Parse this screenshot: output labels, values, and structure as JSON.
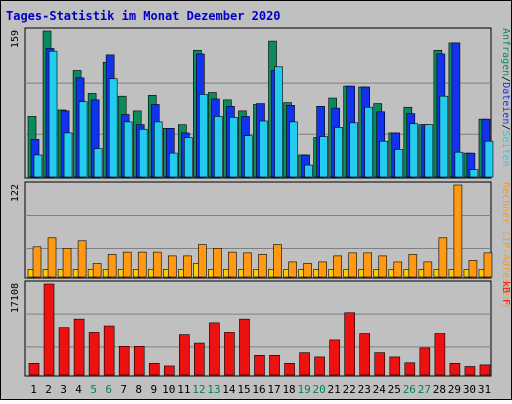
{
  "title": "Tages-Statistik im Monat Dezember 2020",
  "colors": {
    "background": "#ffffff",
    "panel": "#c0c0c0",
    "border": "#000000",
    "title": "#0000cc",
    "anfragen": "#0b8a5a",
    "dateien": "#1133ee",
    "seiten": "#22ccee",
    "besuche": "#ffcc00",
    "rechner": "#ff9911",
    "kbf": "#ee1111",
    "weekend_label": "#008060",
    "weekday_label": "#000000"
  },
  "chart_data": [
    {
      "type": "bar",
      "name_key": "requests",
      "ymax_label": "159",
      "ylim": [
        0,
        159
      ],
      "legend": [
        {
          "text": "Anfragen",
          "color": "#0b8a5a"
        },
        {
          "text": "Dateien",
          "color": "#1133ee"
        },
        {
          "text": "Seiten",
          "color": "#22ccee"
        }
      ],
      "legend_separator": "/",
      "categories": [
        "1",
        "2",
        "3",
        "4",
        "5",
        "6",
        "7",
        "8",
        "9",
        "10",
        "11",
        "12",
        "13",
        "14",
        "15",
        "16",
        "17",
        "18",
        "19",
        "20",
        "21",
        "22",
        "23",
        "24",
        "25",
        "26",
        "27",
        "28",
        "29",
        "30",
        "31"
      ],
      "series": [
        {
          "name": "Anfragen",
          "color": "#0b8a5a",
          "values": [
            66,
            159,
            73,
            116,
            91,
            125,
            88,
            72,
            89,
            53,
            57,
            138,
            92,
            84,
            72,
            79,
            148,
            81,
            24,
            43,
            86,
            99,
            98,
            80,
            48,
            76,
            57,
            138,
            146,
            26,
            63
          ]
        },
        {
          "name": "Dateien",
          "color": "#1133ee",
          "values": [
            41,
            140,
            72,
            108,
            84,
            133,
            68,
            57,
            79,
            53,
            48,
            134,
            85,
            77,
            66,
            80,
            116,
            78,
            24,
            77,
            75,
            99,
            98,
            71,
            48,
            69,
            57,
            134,
            146,
            26,
            63
          ]
        },
        {
          "name": "Seiten",
          "color": "#22ccee",
          "values": [
            24,
            137,
            48,
            82,
            31,
            107,
            60,
            52,
            60,
            26,
            43,
            90,
            66,
            65,
            45,
            61,
            120,
            60,
            13,
            44,
            54,
            59,
            76,
            39,
            30,
            58,
            57,
            88,
            27,
            8,
            39
          ]
        }
      ]
    },
    {
      "type": "bar",
      "name_key": "visits",
      "ymax_label": "122",
      "ylim": [
        0,
        122
      ],
      "legend": [
        {
          "text": "Rechner",
          "color": "#ff9911"
        },
        {
          "text": "(IP-Adressen)",
          "color": "#ff9911"
        }
      ],
      "categories": [
        "1",
        "2",
        "3",
        "4",
        "5",
        "6",
        "7",
        "8",
        "9",
        "10",
        "11",
        "12",
        "13",
        "14",
        "15",
        "16",
        "17",
        "18",
        "19",
        "20",
        "21",
        "22",
        "23",
        "24",
        "25",
        "26",
        "27",
        "28",
        "29",
        "30",
        "31"
      ],
      "series": [
        {
          "name": "Besuche",
          "color": "#ffcc00",
          "values": [
            10,
            10,
            10,
            10,
            10,
            10,
            10,
            10,
            10,
            10,
            10,
            18,
            10,
            10,
            10,
            10,
            10,
            10,
            10,
            10,
            10,
            10,
            10,
            10,
            10,
            10,
            10,
            10,
            10,
            10,
            10
          ]
        },
        {
          "name": "Rechner",
          "color": "#ff9911",
          "values": [
            40,
            52,
            38,
            48,
            18,
            30,
            33,
            33,
            33,
            28,
            28,
            43,
            38,
            33,
            32,
            30,
            43,
            20,
            18,
            20,
            28,
            32,
            32,
            28,
            20,
            30,
            20,
            52,
            122,
            22,
            32
          ]
        }
      ]
    },
    {
      "type": "bar",
      "name_key": "volume",
      "ymax_label": "17108",
      "ylim": [
        0,
        17108
      ],
      "legend": [
        {
          "text": "kB F",
          "color": "#ee1111"
        }
      ],
      "categories": [
        "1",
        "2",
        "3",
        "4",
        "5",
        "6",
        "7",
        "8",
        "9",
        "10",
        "11",
        "12",
        "13",
        "14",
        "15",
        "16",
        "17",
        "18",
        "19",
        "20",
        "21",
        "22",
        "23",
        "24",
        "25",
        "26",
        "27",
        "28",
        "29",
        "30",
        "31"
      ],
      "series": [
        {
          "name": "kB F",
          "color": "#ee1111",
          "values": [
            2200,
            17108,
            8900,
            10500,
            8000,
            9200,
            5400,
            5400,
            2200,
            1700,
            7600,
            6000,
            9800,
            8000,
            10500,
            3700,
            3700,
            2200,
            4200,
            3400,
            6600,
            11700,
            7800,
            4200,
            3400,
            2300,
            5100,
            7800,
            2200,
            1600,
            1900
          ]
        }
      ]
    }
  ],
  "x_labels": {
    "values": [
      "1",
      "2",
      "3",
      "4",
      "5",
      "6",
      "7",
      "8",
      "9",
      "10",
      "11",
      "12",
      "13",
      "14",
      "15",
      "16",
      "17",
      "18",
      "19",
      "20",
      "21",
      "22",
      "23",
      "24",
      "25",
      "26",
      "27",
      "28",
      "29",
      "30",
      "31"
    ],
    "weekend": [
      5,
      6,
      12,
      13,
      19,
      20,
      26,
      27
    ]
  }
}
